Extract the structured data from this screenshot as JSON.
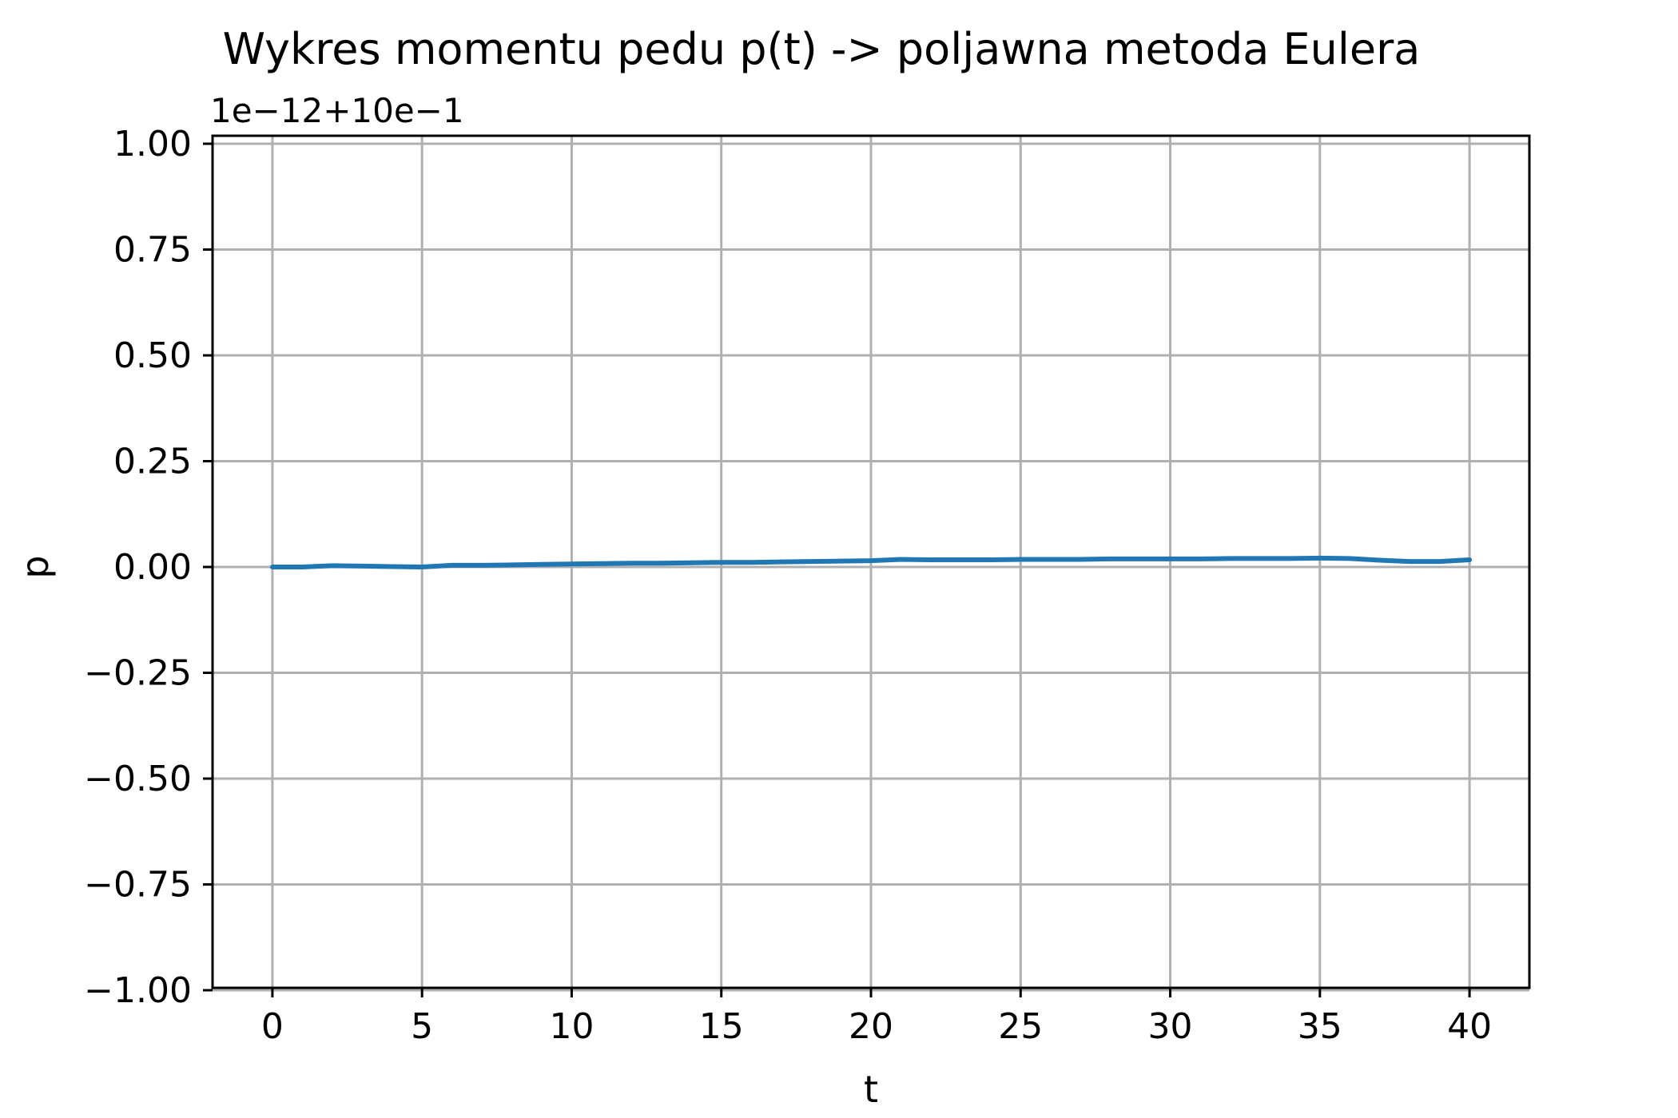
{
  "chart_data": {
    "type": "line",
    "title": "Wykres momentu pedu p(t) -> poljawna metoda Eulera",
    "offset_label": "1e−12+10e−1",
    "xlabel": "t",
    "ylabel": "p",
    "xlim": [
      -2,
      42
    ],
    "ylim": [
      -1.0,
      1.0
    ],
    "x_ticks": [
      0,
      5,
      10,
      15,
      20,
      25,
      30,
      35,
      40
    ],
    "x_tick_labels": [
      "0",
      "5",
      "10",
      "15",
      "20",
      "25",
      "30",
      "35",
      "40"
    ],
    "y_ticks": [
      1.0,
      0.75,
      0.5,
      0.25,
      0.0,
      -0.25,
      -0.5,
      -0.75,
      -1.0
    ],
    "y_tick_labels": [
      "1.00",
      "0.75",
      "0.50",
      "0.25",
      "0.00",
      "−0.25",
      "−0.50",
      "−0.75",
      "−1.00"
    ],
    "grid": true,
    "series": [
      {
        "color": "#1f77b4",
        "x": [
          0,
          1,
          2,
          3,
          4,
          5,
          6,
          7,
          8,
          9,
          10,
          11,
          12,
          13,
          14,
          15,
          16,
          17,
          18,
          19,
          20,
          21,
          22,
          23,
          24,
          25,
          26,
          27,
          28,
          29,
          30,
          31,
          32,
          33,
          34,
          35,
          36,
          37,
          38,
          39,
          40
        ],
        "y": [
          0.0,
          0.0,
          0.003,
          0.002,
          0.001,
          0.0,
          0.004,
          0.004,
          0.005,
          0.006,
          0.007,
          0.008,
          0.009,
          0.009,
          0.01,
          0.011,
          0.011,
          0.012,
          0.013,
          0.014,
          0.015,
          0.018,
          0.017,
          0.017,
          0.017,
          0.018,
          0.018,
          0.018,
          0.019,
          0.019,
          0.019,
          0.019,
          0.02,
          0.02,
          0.02,
          0.021,
          0.02,
          0.016,
          0.013,
          0.013,
          0.017
        ]
      }
    ]
  }
}
